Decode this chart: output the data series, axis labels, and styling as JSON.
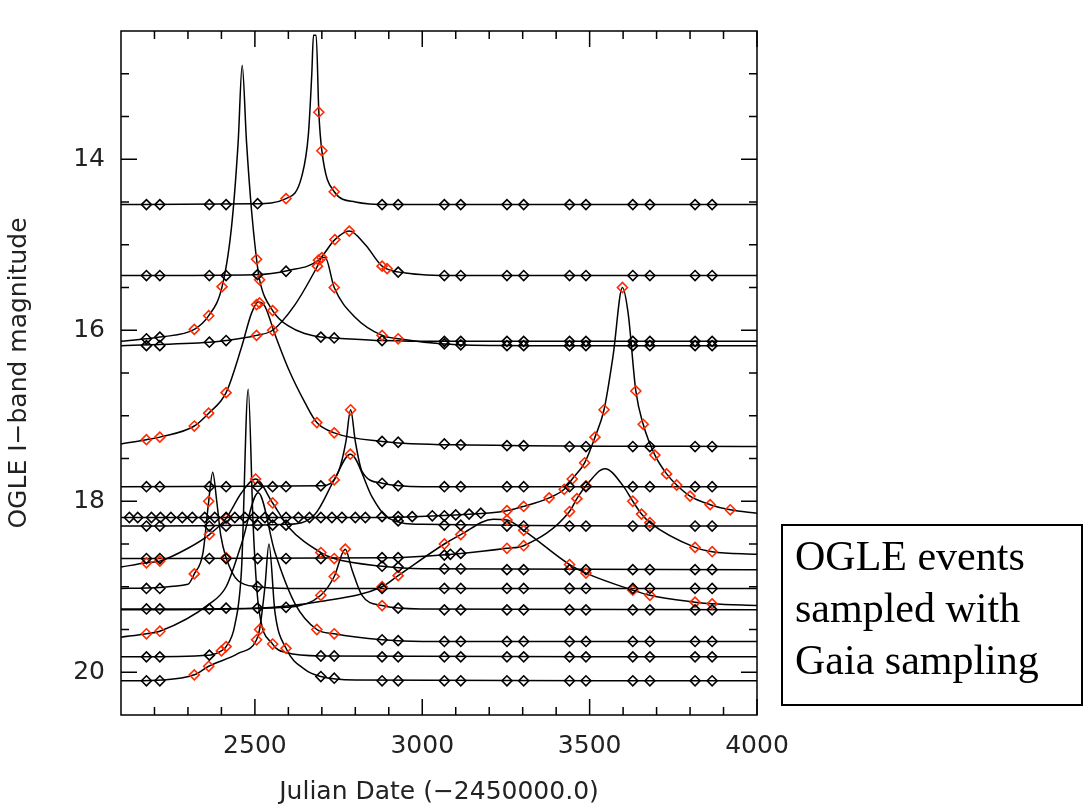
{
  "chart_data": {
    "type": "line",
    "xlabel": "Julian Date (−2450000.0)",
    "ylabel": "OGLE I−band magnitude",
    "xlim": [
      2100,
      4000
    ],
    "ylim": [
      20.5,
      12.5
    ],
    "xticks": [
      {
        "value": 2200,
        "label": null
      },
      {
        "value": 2300,
        "label": null
      },
      {
        "value": 2400,
        "label": null
      },
      2500,
      {
        "value": 2600,
        "label": null
      },
      {
        "value": 2700,
        "label": null
      },
      {
        "value": 2800,
        "label": null
      },
      {
        "value": 2900,
        "label": null
      },
      3000,
      {
        "value": 3100,
        "label": null
      },
      {
        "value": 3200,
        "label": null
      },
      {
        "value": 3300,
        "label": null
      },
      {
        "value": 3400,
        "label": null
      },
      3500,
      {
        "value": 3600,
        "label": null
      },
      {
        "value": 3700,
        "label": null
      },
      {
        "value": 3800,
        "label": null
      },
      {
        "value": 3900,
        "label": null
      },
      4000
    ],
    "yticks": [
      {
        "value": 13,
        "label": null
      },
      {
        "value": 13.5,
        "label": null
      },
      14,
      {
        "value": 14.5,
        "label": null
      },
      {
        "value": 15,
        "label": null
      },
      {
        "value": 15.5,
        "label": null
      },
      16,
      {
        "value": 16.5,
        "label": null
      },
      {
        "value": 17,
        "label": null
      },
      {
        "value": 17.5,
        "label": null
      },
      18,
      {
        "value": 18.5,
        "label": null
      },
      {
        "value": 19,
        "label": null
      },
      {
        "value": 19.5,
        "label": null
      },
      20
    ],
    "grid": false,
    "legend": false,
    "marker": "diamond",
    "annotations": [
      "OGLE events sampled with Gaia sampling"
    ],
    "series": [
      {
        "type": "line",
        "marker": "none",
        "color": "#000000",
        "x": [
          2100,
          2500,
          2593,
          2640,
          2660,
          2670,
          2675,
          2683,
          2691,
          2700,
          2737,
          2800,
          2900,
          4000
        ],
        "values": [
          14.53,
          14.52,
          14.46,
          14.2,
          13.7,
          13.0,
          12.55,
          12.55,
          13.45,
          13.9,
          14.38,
          14.5,
          14.53,
          14.53
        ]
      },
      {
        "type": "line",
        "marker": "none",
        "color": "#000000",
        "x": [
          2100,
          2500,
          2600,
          2690,
          2739,
          2782,
          2830,
          2880,
          2950,
          3100,
          4000
        ],
        "values": [
          15.36,
          15.35,
          15.3,
          15.18,
          14.94,
          14.84,
          15.0,
          15.25,
          15.33,
          15.36,
          15.36
        ]
      },
      {
        "type": "line",
        "marker": "none",
        "color": "#000000",
        "x": [
          2100,
          2176,
          2216,
          2319,
          2362,
          2402,
          2430,
          2450,
          2462,
          2475,
          2490,
          2505,
          2514,
          2553,
          2600,
          2697,
          2737,
          2880,
          3066,
          4000
        ],
        "values": [
          16.13,
          16.1,
          16.08,
          15.99,
          15.83,
          15.49,
          14.8,
          13.8,
          12.9,
          13.8,
          14.6,
          15.17,
          15.41,
          15.77,
          15.95,
          16.08,
          16.09,
          16.12,
          16.13,
          16.13
        ]
      },
      {
        "type": "line",
        "marker": "none",
        "color": "#000000",
        "x": [
          2100,
          2364,
          2414,
          2505,
          2553,
          2620,
          2687,
          2700,
          2710,
          2737,
          2800,
          2880,
          2928,
          3066,
          3300,
          4000
        ],
        "values": [
          16.18,
          16.14,
          16.12,
          16.06,
          16.0,
          15.7,
          15.25,
          15.15,
          15.15,
          15.5,
          15.85,
          16.06,
          16.1,
          16.16,
          16.18,
          16.18
        ]
      },
      {
        "type": "line",
        "marker": "none",
        "color": "#000000",
        "x": [
          2100,
          2176,
          2216,
          2319,
          2362,
          2414,
          2460,
          2490,
          2510,
          2530,
          2560,
          2600,
          2650,
          2685,
          2737,
          2880,
          3100,
          4000
        ],
        "values": [
          17.33,
          17.28,
          17.25,
          17.12,
          16.97,
          16.73,
          16.2,
          15.8,
          15.67,
          15.72,
          16.05,
          16.45,
          16.85,
          17.08,
          17.2,
          17.3,
          17.34,
          17.36
        ]
      },
      {
        "type": "line",
        "marker": "none",
        "color": "#000000",
        "x": [
          2100,
          2800,
          3100,
          3253,
          3303,
          3379,
          3424,
          3448,
          3485,
          3516,
          3543,
          3570,
          3598,
          3615,
          3638,
          3660,
          3695,
          3730,
          3760,
          3800,
          3860,
          3920,
          4000
        ],
        "values": [
          18.19,
          18.19,
          18.16,
          18.11,
          18.06,
          17.96,
          17.86,
          17.74,
          17.55,
          17.25,
          16.93,
          16.3,
          15.5,
          15.8,
          16.71,
          17.1,
          17.46,
          17.68,
          17.81,
          17.94,
          18.04,
          18.1,
          18.14
        ]
      },
      {
        "type": "line",
        "marker": "none",
        "color": "#000000",
        "x": [
          2100,
          2700,
          2750,
          2772,
          2786,
          2800,
          2820,
          2880,
          3000,
          4000
        ],
        "values": [
          17.83,
          17.82,
          17.65,
          17.3,
          16.93,
          17.3,
          17.65,
          17.79,
          17.83,
          17.83
        ]
      },
      {
        "type": "line",
        "marker": "none",
        "color": "#000000",
        "x": [
          2100,
          2600,
          2680,
          2737,
          2785,
          2800,
          2850,
          2900,
          3000,
          4000
        ],
        "values": [
          18.29,
          18.27,
          18.15,
          17.75,
          17.45,
          17.5,
          17.95,
          18.2,
          18.27,
          18.29
        ]
      },
      {
        "type": "line",
        "marker": "none",
        "color": "#000000",
        "x": [
          2100,
          2300,
          2319,
          2345,
          2362,
          2374,
          2386,
          2398,
          2414,
          2450,
          2508,
          2600,
          4000
        ],
        "values": [
          19.02,
          18.97,
          18.85,
          18.6,
          18.0,
          17.66,
          18.0,
          18.4,
          18.66,
          18.93,
          19.0,
          19.02,
          19.02
        ]
      },
      {
        "type": "line",
        "marker": "none",
        "color": "#000000",
        "x": [
          2100,
          2364,
          2400,
          2414,
          2440,
          2460,
          2480,
          2495,
          2510,
          2553,
          2593,
          2700,
          4000
        ],
        "values": [
          19.82,
          19.8,
          19.75,
          19.7,
          19.45,
          18.8,
          16.69,
          18.3,
          19.2,
          19.67,
          19.77,
          19.81,
          19.82
        ]
      },
      {
        "type": "line",
        "marker": "none",
        "color": "#000000",
        "x": [
          2100,
          2225,
          2319,
          2362,
          2450,
          2505,
          2514,
          2530,
          2542,
          2560,
          2593,
          2650,
          2697,
          2800,
          4000
        ],
        "values": [
          20.1,
          20.09,
          20.03,
          19.93,
          19.78,
          19.62,
          19.5,
          19.0,
          18.5,
          19.3,
          19.72,
          19.97,
          20.05,
          20.09,
          20.1
        ]
      },
      {
        "type": "line",
        "marker": "none",
        "color": "#000000",
        "x": [
          2100,
          2900,
          3115,
          3253,
          3303,
          3440,
          3462,
          3489,
          3546,
          3600,
          3629,
          3655,
          3680,
          3815,
          3866,
          4000
        ],
        "values": [
          18.67,
          18.66,
          18.61,
          18.55,
          18.52,
          18.12,
          17.97,
          17.82,
          17.62,
          17.82,
          18.0,
          18.15,
          18.25,
          18.54,
          18.59,
          18.62
        ]
      },
      {
        "type": "line",
        "marker": "none",
        "color": "#000000",
        "x": [
          2100,
          2176,
          2216,
          2300,
          2364,
          2414,
          2460,
          2502,
          2553,
          2600,
          2697,
          2737,
          2880,
          3000,
          4000
        ],
        "values": [
          18.77,
          18.72,
          18.7,
          18.55,
          18.39,
          18.2,
          17.9,
          17.74,
          18.02,
          18.3,
          18.6,
          18.67,
          18.76,
          18.79,
          18.8
        ]
      },
      {
        "type": "line",
        "marker": "none",
        "color": "#000000",
        "x": [
          2100,
          2500,
          2700,
          2880,
          2928,
          3066,
          3115,
          3212,
          3253,
          3303,
          3440,
          3489,
          3629,
          3680,
          3815,
          3866,
          4000
        ],
        "values": [
          19.26,
          19.25,
          19.17,
          19.0,
          18.87,
          18.5,
          18.39,
          18.21,
          18.22,
          18.34,
          18.74,
          18.84,
          19.04,
          19.1,
          19.18,
          19.2,
          19.22
        ]
      },
      {
        "type": "line",
        "marker": "none",
        "color": "#000000",
        "x": [
          2100,
          2600,
          2697,
          2737,
          2770,
          2790,
          2820,
          2880,
          3000,
          4000
        ],
        "values": [
          19.27,
          19.24,
          19.1,
          18.88,
          18.56,
          18.8,
          19.1,
          19.22,
          19.26,
          19.27
        ]
      },
      {
        "type": "line",
        "marker": "none",
        "color": "#000000",
        "x": [
          2100,
          2176,
          2216,
          2364,
          2414,
          2460,
          2510,
          2560,
          2620,
          2685,
          2737,
          2880,
          3000,
          4000
        ],
        "values": [
          19.59,
          19.55,
          19.52,
          19.2,
          19.0,
          18.5,
          17.9,
          18.6,
          19.2,
          19.5,
          19.55,
          19.62,
          19.64,
          19.64
        ]
      },
      {
        "type": "scatter",
        "color": "#000000",
        "x": [
          2176,
          2216,
          2364,
          2414,
          2508,
          2880,
          2928,
          3066,
          3115,
          3253,
          3303,
          3440,
          3489,
          3629,
          3680,
          3815,
          3866
        ],
        "values": [
          14.53,
          14.53,
          14.53,
          14.53,
          14.52,
          14.53,
          14.53,
          14.53,
          14.53,
          14.53,
          14.53,
          14.53,
          14.53,
          14.53,
          14.53,
          14.53,
          14.53
        ]
      },
      {
        "type": "scatter",
        "color": "#000000",
        "x": [
          2176,
          2216,
          2364,
          2414,
          2508,
          2593,
          2928,
          3066,
          3115,
          3253,
          3303,
          3440,
          3489,
          3629,
          3680,
          3815,
          3866
        ],
        "values": [
          15.36,
          15.36,
          15.36,
          15.36,
          15.35,
          15.31,
          15.32,
          15.36,
          15.36,
          15.36,
          15.36,
          15.36,
          15.36,
          15.36,
          15.36,
          15.36,
          15.36
        ]
      },
      {
        "type": "scatter",
        "color": "#000000",
        "x": [
          2176,
          2216,
          2697,
          2737,
          2880,
          3066,
          3115,
          3253,
          3303,
          3440,
          3489,
          3629,
          3680,
          3815,
          3866
        ],
        "values": [
          16.1,
          16.08,
          16.08,
          16.09,
          16.12,
          16.13,
          16.13,
          16.13,
          16.13,
          16.13,
          16.13,
          16.13,
          16.13,
          16.13,
          16.13
        ]
      },
      {
        "type": "scatter",
        "color": "#000000",
        "x": [
          2176,
          2216,
          2364,
          2414,
          3066,
          3115,
          3253,
          3303,
          3440,
          3489,
          3629,
          3680,
          3815,
          3866
        ],
        "values": [
          16.18,
          16.18,
          16.14,
          16.12,
          16.16,
          16.17,
          16.18,
          16.18,
          16.18,
          16.18,
          16.18,
          16.18,
          16.18,
          16.18
        ]
      },
      {
        "type": "scatter",
        "color": "#000000",
        "x": [
          2880,
          2928,
          3066,
          3115,
          3253,
          3303,
          3440,
          3489,
          3629,
          3680,
          3815,
          3866
        ],
        "values": [
          17.3,
          17.31,
          17.33,
          17.34,
          17.35,
          17.35,
          17.36,
          17.36,
          17.36,
          17.36,
          17.36,
          17.36
        ]
      },
      {
        "type": "scatter",
        "color": "#000000",
        "x": [
          2125,
          2150,
          2191,
          2218,
          2249,
          2283,
          2313,
          2350,
          2380,
          2414,
          2440,
          2470,
          2497,
          2530,
          2553,
          2593,
          2630,
          2663,
          2697,
          2730,
          2760,
          2800,
          2830,
          2880,
          2928,
          2970,
          3030,
          3066,
          3100,
          3140,
          3175
        ],
        "values": [
          18.19,
          18.19,
          18.19,
          18.19,
          18.19,
          18.19,
          18.19,
          18.19,
          18.19,
          18.19,
          18.19,
          18.19,
          18.19,
          18.19,
          18.19,
          18.19,
          18.19,
          18.19,
          18.19,
          18.19,
          18.19,
          18.19,
          18.19,
          18.18,
          18.18,
          18.18,
          18.17,
          18.17,
          18.16,
          18.15,
          18.14
        ]
      },
      {
        "type": "scatter",
        "color": "#000000",
        "x": [
          2176,
          2216,
          2364,
          2414,
          2508,
          2553,
          2593,
          2697,
          2880,
          2928,
          3066,
          3115,
          3253,
          3303,
          3440,
          3489,
          3629,
          3680,
          3815,
          3866
        ],
        "values": [
          17.83,
          17.83,
          17.83,
          17.83,
          17.83,
          17.83,
          17.83,
          17.82,
          17.79,
          17.82,
          17.83,
          17.83,
          17.83,
          17.83,
          17.83,
          17.83,
          17.83,
          17.83,
          17.83,
          17.83
        ]
      },
      {
        "type": "scatter",
        "color": "#000000",
        "x": [
          2176,
          2216,
          2364,
          2414,
          2508,
          2553,
          2593,
          2928,
          3066,
          3115,
          3253,
          3303,
          3440,
          3489,
          3629,
          3680,
          3815,
          3866
        ],
        "values": [
          18.29,
          18.29,
          18.29,
          18.29,
          18.28,
          18.28,
          18.28,
          18.23,
          18.28,
          18.28,
          18.29,
          18.29,
          18.29,
          18.29,
          18.29,
          18.29,
          18.29,
          18.29
        ]
      },
      {
        "type": "scatter",
        "color": "#000000",
        "x": [
          2176,
          2216,
          2508,
          2880,
          3066,
          3115,
          3253,
          3303,
          3440,
          3489,
          3629,
          3680,
          3815,
          3866
        ],
        "values": [
          19.02,
          19.02,
          19.0,
          19.02,
          19.02,
          19.02,
          19.02,
          19.02,
          19.02,
          19.02,
          19.02,
          19.02,
          19.02,
          19.02
        ]
      },
      {
        "type": "scatter",
        "color": "#000000",
        "x": [
          2176,
          2216,
          2364,
          2697,
          2737,
          2880,
          2928,
          3066,
          3115,
          3253,
          3303,
          3440,
          3489,
          3629,
          3680,
          3815,
          3866
        ],
        "values": [
          19.82,
          19.82,
          19.8,
          19.81,
          19.81,
          19.82,
          19.82,
          19.82,
          19.82,
          19.82,
          19.82,
          19.82,
          19.82,
          19.82,
          19.82,
          19.82,
          19.82
        ]
      },
      {
        "type": "scatter",
        "color": "#000000",
        "x": [
          2176,
          2216,
          2697,
          2737,
          2880,
          2928,
          3066,
          3115,
          3253,
          3303,
          3440,
          3489,
          3629,
          3680,
          3815,
          3866
        ],
        "values": [
          20.1,
          20.1,
          20.05,
          20.07,
          20.1,
          20.1,
          20.1,
          20.1,
          20.1,
          20.1,
          20.1,
          20.1,
          20.1,
          20.1,
          20.1,
          20.1
        ]
      },
      {
        "type": "scatter",
        "color": "#000000",
        "x": [
          2176,
          2216,
          2364,
          2414,
          2508,
          2593,
          2697,
          2880,
          2928,
          3066,
          3084,
          3115
        ],
        "values": [
          18.67,
          18.67,
          18.67,
          18.67,
          18.67,
          18.67,
          18.67,
          18.66,
          18.66,
          18.63,
          18.62,
          18.61
        ]
      },
      {
        "type": "scatter",
        "color": "#000000",
        "x": [
          2880,
          2928,
          3066,
          3115,
          3253,
          3303,
          3440,
          3489,
          3629,
          3680,
          3815,
          3866
        ],
        "values": [
          18.76,
          18.77,
          18.79,
          18.79,
          18.8,
          18.8,
          18.8,
          18.8,
          18.8,
          18.8,
          18.8,
          18.8
        ]
      },
      {
        "type": "scatter",
        "color": "#000000",
        "x": [
          2176,
          2216,
          2364,
          2414,
          2508,
          2593
        ],
        "values": [
          19.26,
          19.26,
          19.26,
          19.25,
          19.25,
          19.24
        ]
      },
      {
        "type": "scatter",
        "color": "#000000",
        "x": [
          2928,
          3066,
          3115,
          3253,
          3303,
          3440,
          3489,
          3629,
          3680,
          3815,
          3866
        ],
        "values": [
          19.25,
          19.27,
          19.27,
          19.27,
          19.27,
          19.27,
          19.27,
          19.27,
          19.27,
          19.27,
          19.27
        ]
      },
      {
        "type": "scatter",
        "color": "#000000",
        "x": [
          2880,
          2928,
          3066,
          3115,
          3253,
          3303,
          3440,
          3489,
          3629,
          3680,
          3815,
          3866
        ],
        "values": [
          19.62,
          19.63,
          19.64,
          19.64,
          19.64,
          19.64,
          19.64,
          19.64,
          19.64,
          19.64,
          19.64,
          19.64
        ]
      },
      {
        "type": "scatter",
        "color": "#ff2a00",
        "x": [
          2593,
          2691,
          2700,
          2737
        ],
        "values": [
          14.46,
          13.45,
          13.9,
          14.38
        ]
      },
      {
        "type": "scatter",
        "color": "#ff2a00",
        "x": [
          2690,
          2739,
          2782,
          2880,
          2895
        ],
        "values": [
          15.18,
          14.94,
          14.84,
          15.25,
          15.28
        ]
      },
      {
        "type": "scatter",
        "color": "#ff2a00",
        "x": [
          2319,
          2362,
          2402,
          2505,
          2514,
          2553
        ],
        "values": [
          15.99,
          15.83,
          15.49,
          15.17,
          15.41,
          15.77
        ]
      },
      {
        "type": "scatter",
        "color": "#ff2a00",
        "x": [
          2505,
          2553,
          2687,
          2700,
          2737,
          2880,
          2928
        ],
        "values": [
          16.06,
          16.0,
          15.25,
          15.15,
          15.5,
          16.06,
          16.1
        ]
      },
      {
        "type": "scatter",
        "color": "#ff2a00",
        "x": [
          2176,
          2216,
          2319,
          2362,
          2414,
          2505,
          2514,
          2685,
          2737
        ],
        "values": [
          17.28,
          17.25,
          17.12,
          16.97,
          16.73,
          15.7,
          15.68,
          17.08,
          17.2
        ]
      },
      {
        "type": "scatter",
        "color": "#ff2a00",
        "x": [
          3253,
          3303,
          3379,
          3424,
          3448,
          3485,
          3516,
          3543,
          3598,
          3638,
          3660,
          3695,
          3730,
          3760,
          3800,
          3860,
          3920
        ],
        "values": [
          18.11,
          18.06,
          17.96,
          17.86,
          17.74,
          17.55,
          17.25,
          16.93,
          15.5,
          16.71,
          17.1,
          17.46,
          17.68,
          17.81,
          17.94,
          18.04,
          18.1
        ]
      },
      {
        "type": "scatter",
        "color": "#ff2a00",
        "x": [
          2786
        ],
        "values": [
          16.93
        ]
      },
      {
        "type": "scatter",
        "color": "#ff2a00",
        "x": [
          2737,
          2785
        ],
        "values": [
          17.75,
          17.45
        ]
      },
      {
        "type": "scatter",
        "color": "#ff2a00",
        "x": [
          2319,
          2362,
          2414
        ],
        "values": [
          18.85,
          18.0,
          18.66
        ]
      },
      {
        "type": "scatter",
        "color": "#ff2a00",
        "x": [
          2400,
          2414,
          2553
        ],
        "values": [
          19.75,
          19.7,
          19.67
        ]
      },
      {
        "type": "scatter",
        "color": "#ff2a00",
        "x": [
          2319,
          2362,
          2505,
          2514,
          2593
        ],
        "values": [
          20.03,
          19.93,
          19.62,
          19.5,
          19.72
        ]
      },
      {
        "type": "scatter",
        "color": "#ff2a00",
        "x": [
          3253,
          3303,
          3440,
          3462,
          3489,
          3629,
          3655,
          3680,
          3815,
          3866
        ],
        "values": [
          18.55,
          18.52,
          18.12,
          17.97,
          17.82,
          18.0,
          18.15,
          18.25,
          18.54,
          18.59
        ]
      },
      {
        "type": "scatter",
        "color": "#ff2a00",
        "x": [
          2176,
          2216,
          2364,
          2414,
          2502,
          2553,
          2697,
          2737
        ],
        "values": [
          18.72,
          18.7,
          18.39,
          18.2,
          17.74,
          18.02,
          18.6,
          18.67
        ]
      },
      {
        "type": "scatter",
        "color": "#ff2a00",
        "x": [
          2880,
          2928,
          3066,
          3115,
          3253,
          3303,
          3440,
          3489,
          3629,
          3680,
          3815,
          3866
        ],
        "values": [
          19.0,
          18.87,
          18.5,
          18.39,
          18.22,
          18.34,
          18.74,
          18.84,
          19.04,
          19.1,
          19.18,
          19.2
        ]
      },
      {
        "type": "scatter",
        "color": "#ff2a00",
        "x": [
          2697,
          2737,
          2770,
          2880
        ],
        "values": [
          19.1,
          18.88,
          18.56,
          19.22
        ]
      },
      {
        "type": "scatter",
        "color": "#ff2a00",
        "x": [
          2176,
          2216,
          2685,
          2737
        ],
        "values": [
          19.55,
          19.52,
          19.5,
          19.55
        ]
      }
    ]
  }
}
